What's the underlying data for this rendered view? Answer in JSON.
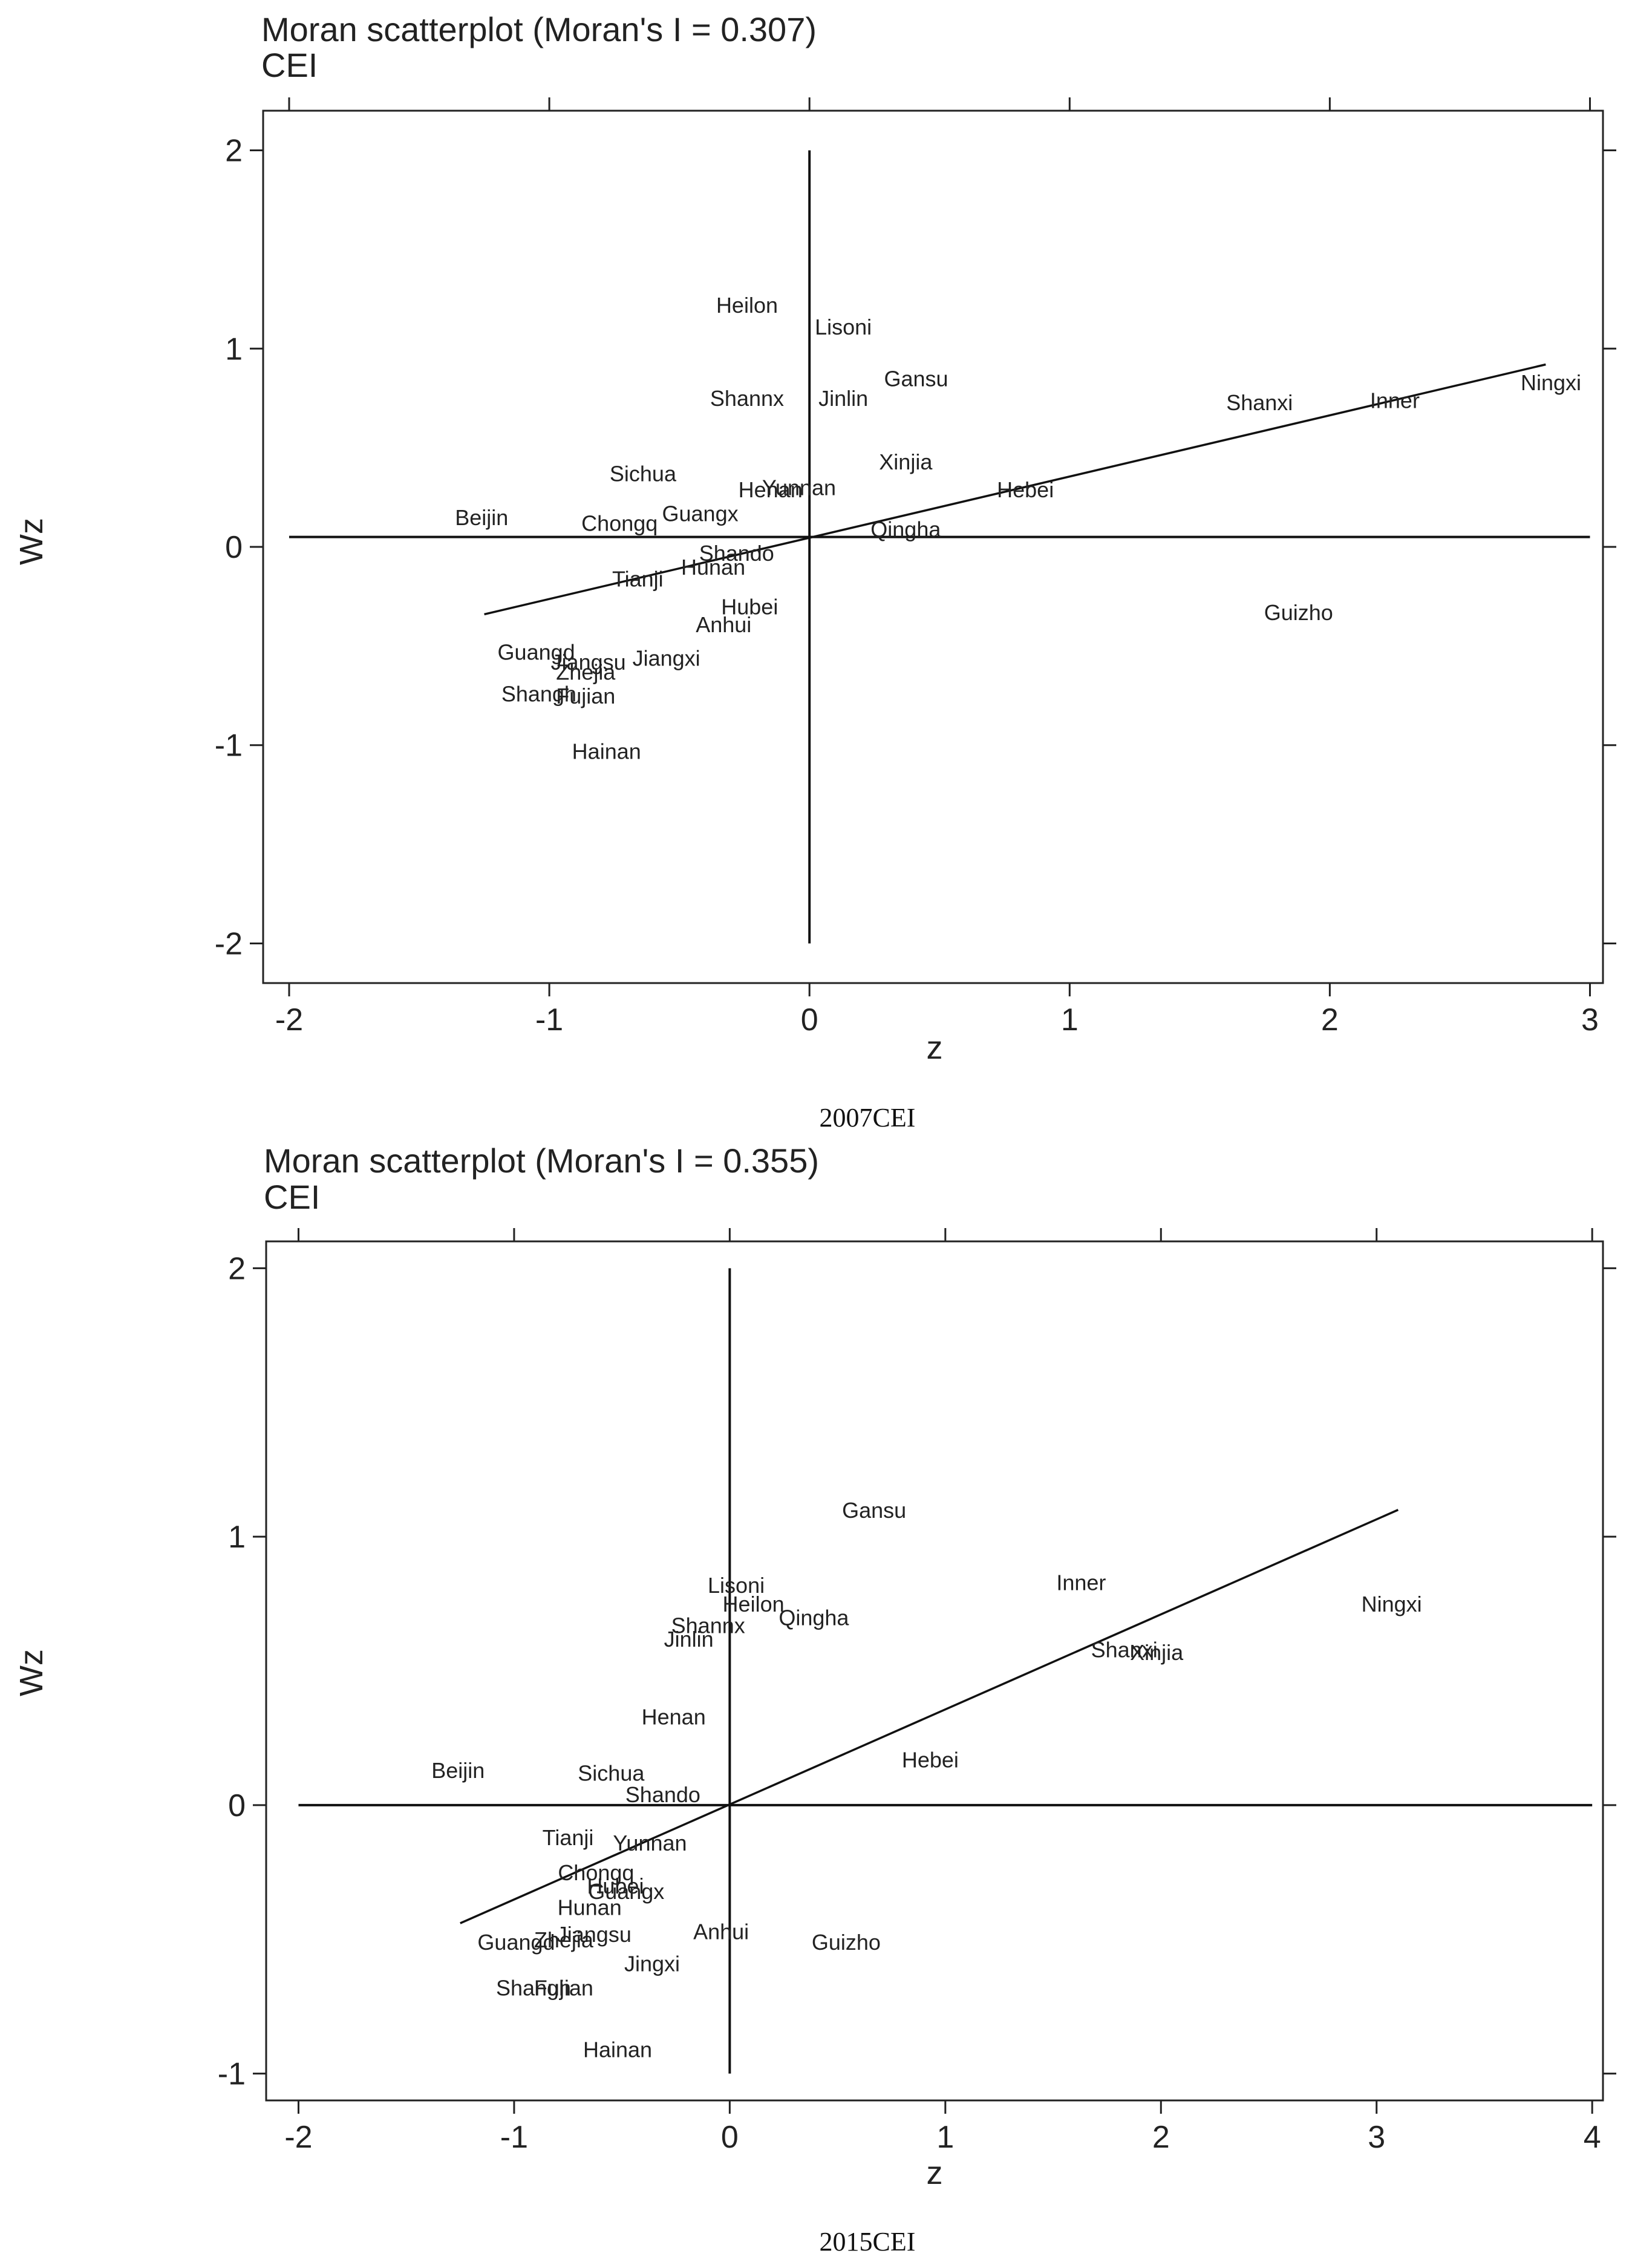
{
  "chart_data": [
    {
      "type": "scatter",
      "title": "Moran scatterplot (Moran's I = 0.307)",
      "subtitle": "CEI",
      "xlabel": "z",
      "ylabel": "Wz",
      "caption": "2007CEI",
      "xlim": [
        -2.1,
        3.05
      ],
      "ylim": [
        -2.2,
        2.2
      ],
      "xticks": [
        -2,
        -1,
        0,
        1,
        2,
        3
      ],
      "yticks": [
        -2,
        -1,
        0,
        1,
        2
      ],
      "hline_y": 0.05,
      "vline_x": 0,
      "guide_x": [
        -2,
        3
      ],
      "guide_y": [
        -2,
        2
      ],
      "fit_line": {
        "x": [
          -1.25,
          2.83
        ],
        "y": [
          -0.34,
          0.92
        ]
      },
      "points": [
        {
          "label": "Heilon",
          "x": -0.24,
          "y": 1.22
        },
        {
          "label": "Lisoni",
          "x": 0.13,
          "y": 1.11
        },
        {
          "label": "Gansu",
          "x": 0.41,
          "y": 0.85
        },
        {
          "label": "Shannx",
          "x": -0.24,
          "y": 0.75
        },
        {
          "label": "Jinlin",
          "x": 0.13,
          "y": 0.75
        },
        {
          "label": "Shanxi",
          "x": 1.73,
          "y": 0.73
        },
        {
          "label": "Inner",
          "x": 2.25,
          "y": 0.74
        },
        {
          "label": "Ningxi",
          "x": 2.85,
          "y": 0.83
        },
        {
          "label": "Sichua",
          "x": -0.64,
          "y": 0.37
        },
        {
          "label": "Xinjia",
          "x": 0.37,
          "y": 0.43
        },
        {
          "label": "Yunnan",
          "x": -0.04,
          "y": 0.3
        },
        {
          "label": "Henan",
          "x": -0.15,
          "y": 0.29
        },
        {
          "label": "Hebei",
          "x": 0.83,
          "y": 0.29
        },
        {
          "label": "Beijin",
          "x": -1.26,
          "y": 0.15
        },
        {
          "label": "Guangx",
          "x": -0.42,
          "y": 0.17
        },
        {
          "label": "Chongq",
          "x": -0.73,
          "y": 0.12
        },
        {
          "label": "Qingha",
          "x": 0.37,
          "y": 0.09
        },
        {
          "label": "Shando",
          "x": -0.28,
          "y": -0.03
        },
        {
          "label": "Hunan",
          "x": -0.37,
          "y": -0.1
        },
        {
          "label": "Tianji",
          "x": -0.66,
          "y": -0.16
        },
        {
          "label": "Hubei",
          "x": -0.23,
          "y": -0.3
        },
        {
          "label": "Anhui",
          "x": -0.33,
          "y": -0.39
        },
        {
          "label": "Guizho",
          "x": 1.88,
          "y": -0.33
        },
        {
          "label": "Guangd",
          "x": -1.05,
          "y": -0.53
        },
        {
          "label": "Jiangsu",
          "x": -0.85,
          "y": -0.58
        },
        {
          "label": "Jiangxi",
          "x": -0.55,
          "y": -0.56
        },
        {
          "label": "Zhejia",
          "x": -0.86,
          "y": -0.63
        },
        {
          "label": "Shangh",
          "x": -1.04,
          "y": -0.74
        },
        {
          "label": "Fujian",
          "x": -0.86,
          "y": -0.75
        },
        {
          "label": "Hainan",
          "x": -0.78,
          "y": -1.03
        }
      ]
    },
    {
      "type": "scatter",
      "title": "Moran scatterplot (Moran's I = 0.355)",
      "subtitle": "CEI",
      "xlabel": "z",
      "ylabel": "Wz",
      "caption": "2015CEI",
      "xlim": [
        -2.15,
        4.05
      ],
      "ylim": [
        -1.1,
        2.1
      ],
      "xticks": [
        -2,
        -1,
        0,
        1,
        2,
        3,
        4
      ],
      "yticks": [
        -1,
        0,
        1,
        2
      ],
      "hline_y": 0,
      "vline_x": 0,
      "guide_x": [
        -2,
        4
      ],
      "guide_y": [
        -1,
        2
      ],
      "fit_line": {
        "x": [
          -1.25,
          3.1
        ],
        "y": [
          -0.44,
          1.1
        ]
      },
      "points": [
        {
          "label": "Gansu",
          "x": 0.67,
          "y": 1.1
        },
        {
          "label": "Lisoni",
          "x": 0.03,
          "y": 0.82
        },
        {
          "label": "Heilon",
          "x": 0.11,
          "y": 0.75
        },
        {
          "label": "Qingha",
          "x": 0.39,
          "y": 0.7
        },
        {
          "label": "Shannx",
          "x": -0.1,
          "y": 0.67
        },
        {
          "label": "Jinlin",
          "x": -0.19,
          "y": 0.62
        },
        {
          "label": "Inner",
          "x": 1.63,
          "y": 0.83
        },
        {
          "label": "Ningxi",
          "x": 3.07,
          "y": 0.75
        },
        {
          "label": "Shanxi",
          "x": 1.83,
          "y": 0.58
        },
        {
          "label": "Xinjia",
          "x": 1.98,
          "y": 0.57
        },
        {
          "label": "Henan",
          "x": -0.26,
          "y": 0.33
        },
        {
          "label": "Hebei",
          "x": 0.93,
          "y": 0.17
        },
        {
          "label": "Beijin",
          "x": -1.26,
          "y": 0.13
        },
        {
          "label": "Sichua",
          "x": -0.55,
          "y": 0.12
        },
        {
          "label": "Shando",
          "x": -0.31,
          "y": 0.04
        },
        {
          "label": "Tianji",
          "x": -0.75,
          "y": -0.12
        },
        {
          "label": "Yunnan",
          "x": -0.37,
          "y": -0.14
        },
        {
          "label": "Chongq",
          "x": -0.62,
          "y": -0.25
        },
        {
          "label": "Guangx",
          "x": -0.48,
          "y": -0.32
        },
        {
          "label": "Hubei",
          "x": -0.53,
          "y": -0.3
        },
        {
          "label": "Hunan",
          "x": -0.65,
          "y": -0.38
        },
        {
          "label": "Anhui",
          "x": -0.04,
          "y": -0.47
        },
        {
          "label": "Guizho",
          "x": 0.54,
          "y": -0.51
        },
        {
          "label": "Jiangsu",
          "x": -0.63,
          "y": -0.48
        },
        {
          "label": "Zhejia",
          "x": -0.77,
          "y": -0.5
        },
        {
          "label": "Guangd",
          "x": -0.99,
          "y": -0.51
        },
        {
          "label": "Jingxi",
          "x": -0.36,
          "y": -0.59
        },
        {
          "label": "Shangh",
          "x": -0.91,
          "y": -0.68
        },
        {
          "label": "Fujian",
          "x": -0.77,
          "y": -0.68
        },
        {
          "label": "Hainan",
          "x": -0.52,
          "y": -0.91
        }
      ]
    }
  ]
}
